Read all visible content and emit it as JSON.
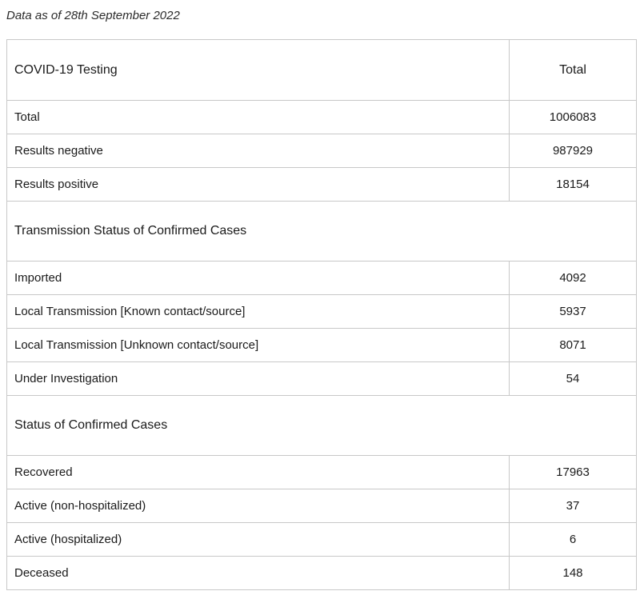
{
  "as_of": "Data as of 28th September 2022",
  "header": {
    "label": "COVID-19 Testing",
    "total_label": "Total"
  },
  "testing": [
    {
      "label": "Total",
      "value": "1006083"
    },
    {
      "label": "Results negative",
      "value": "987929"
    },
    {
      "label": "Results positive",
      "value": "18154"
    }
  ],
  "transmission": {
    "title": "Transmission Status of Confirmed Cases",
    "rows": [
      {
        "label": "Imported",
        "value": "4092"
      },
      {
        "label": "Local Transmission [Known contact/source]",
        "value": "5937"
      },
      {
        "label": "Local Transmission [Unknown contact/source]",
        "value": "8071"
      },
      {
        "label": "Under Investigation",
        "value": "54"
      }
    ]
  },
  "status": {
    "title": "Status of Confirmed Cases",
    "rows": [
      {
        "label": "Recovered",
        "value": "17963"
      },
      {
        "label": "Active (non-hospitalized)",
        "value": "37"
      },
      {
        "label": "Active (hospitalized)",
        "value": "6"
      },
      {
        "label": "Deceased",
        "value": "148"
      }
    ]
  }
}
